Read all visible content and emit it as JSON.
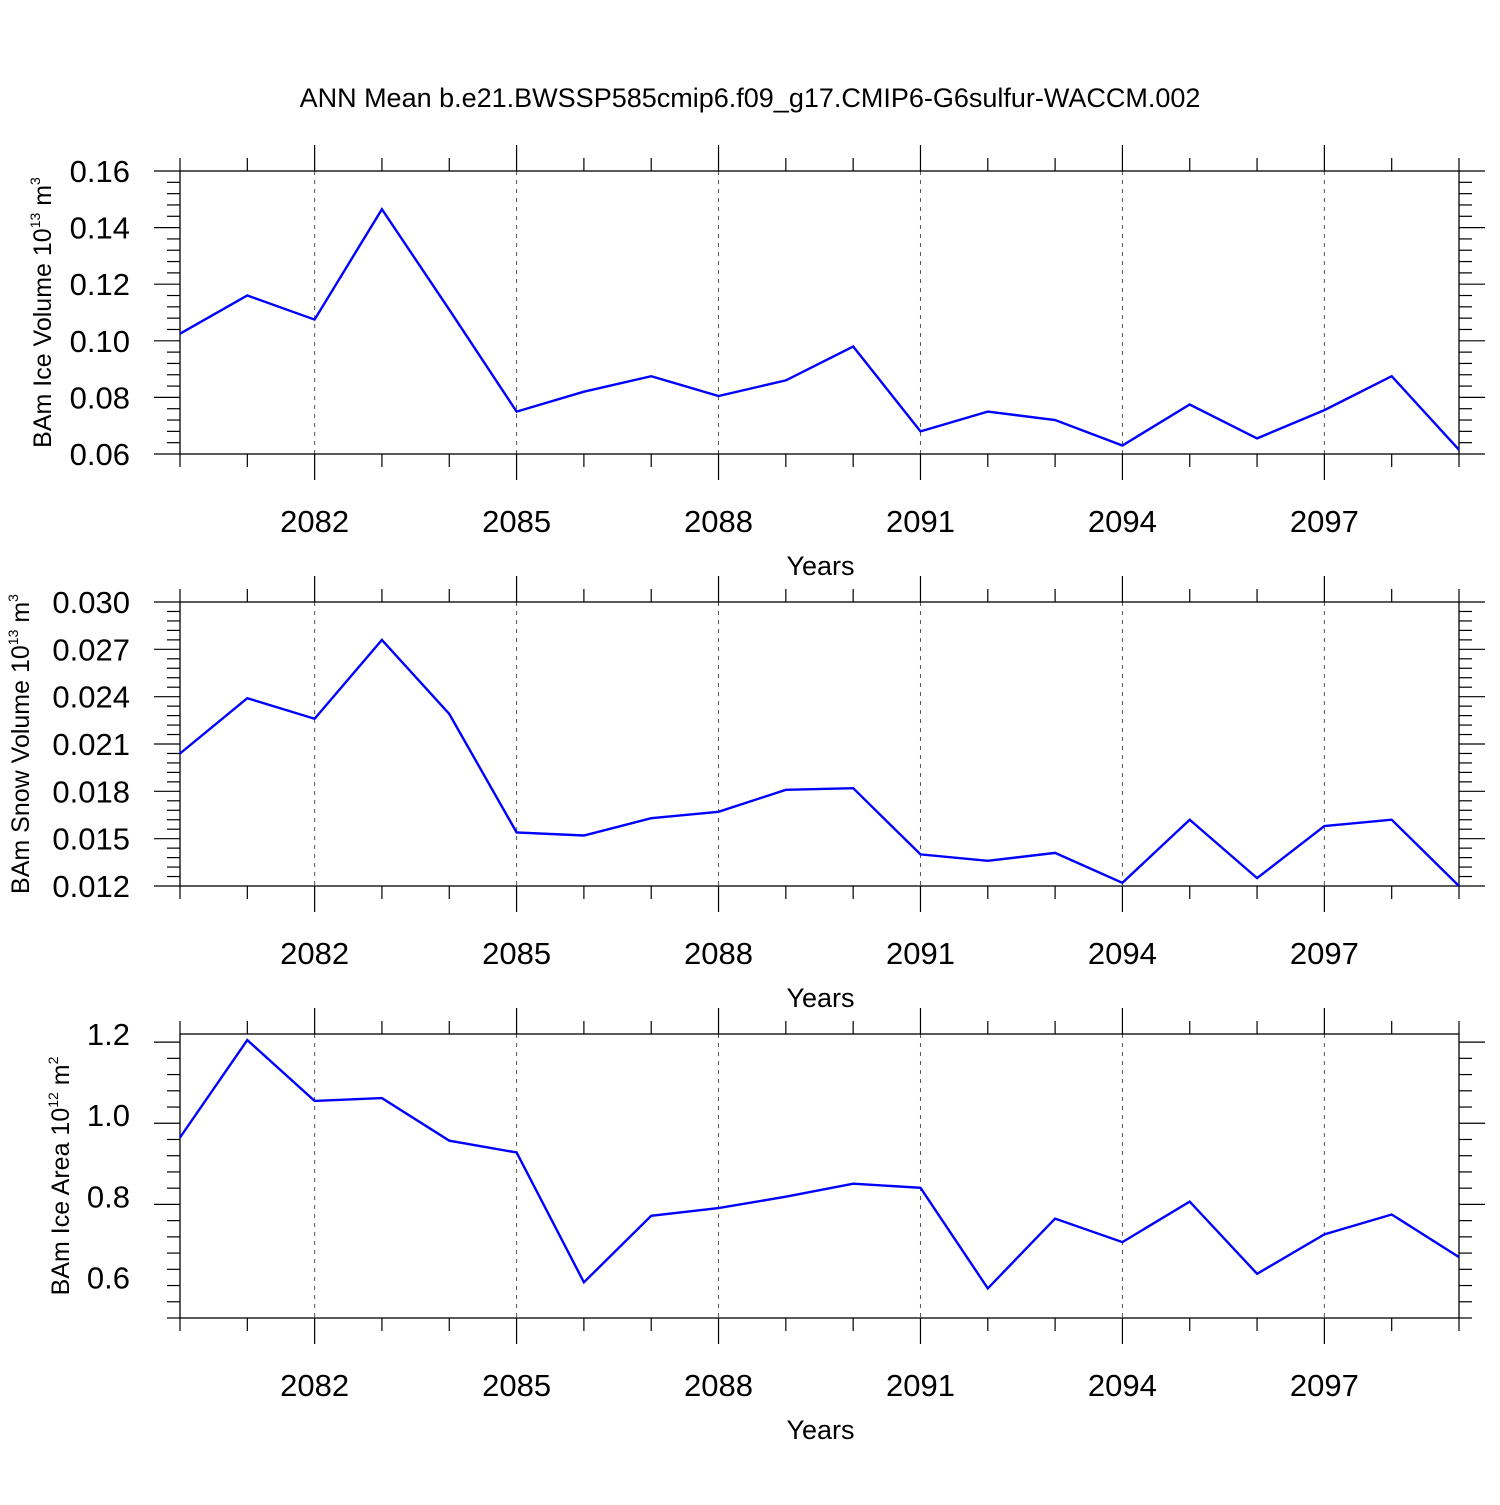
{
  "title": "ANN Mean b.e21.BWSSP585cmip6.f09_g17.CMIP6-G6sulfur-WACCM.002",
  "colors": {
    "line": "#0000ff",
    "axis": "#000000",
    "grid": "#555555"
  },
  "chart_data": [
    {
      "type": "line",
      "ylabel": {
        "text": "BAm Ice Volume 10",
        "sup1": "13",
        "unit": "m",
        "sup2": "3"
      },
      "xlabel": "Years",
      "xlim": [
        2080,
        2099
      ],
      "ylim": [
        0.06,
        0.16
      ],
      "x_ticks": [
        2082,
        2085,
        2088,
        2091,
        2094,
        2097
      ],
      "x_tick_labels": [
        "2082",
        "2085",
        "2088",
        "2091",
        "2094",
        "2097"
      ],
      "y_ticks": [
        0.06,
        0.08,
        0.1,
        0.12,
        0.14,
        0.16
      ],
      "y_tick_labels": [
        "0.06",
        "0.08",
        "0.10",
        "0.12",
        "0.14",
        "0.16"
      ],
      "grid": "vertical dashed at major x ticks",
      "x": [
        2080,
        2081,
        2082,
        2083,
        2084,
        2085,
        2086,
        2087,
        2088,
        2089,
        2090,
        2091,
        2092,
        2093,
        2094,
        2095,
        2096,
        2097,
        2098,
        2099
      ],
      "values": [
        0.1025,
        0.116,
        0.1075,
        0.1465,
        0.111,
        0.075,
        0.082,
        0.0875,
        0.0805,
        0.086,
        0.098,
        0.068,
        0.075,
        0.072,
        0.063,
        0.0775,
        0.0655,
        0.0755,
        0.0875,
        0.0615
      ]
    },
    {
      "type": "line",
      "ylabel": {
        "text": "BAm Snow Volume 10",
        "sup1": "13",
        "unit": "m",
        "sup2": "3"
      },
      "xlabel": "Years",
      "xlim": [
        2080,
        2099
      ],
      "ylim": [
        0.012,
        0.03
      ],
      "x_ticks": [
        2082,
        2085,
        2088,
        2091,
        2094,
        2097
      ],
      "x_tick_labels": [
        "2082",
        "2085",
        "2088",
        "2091",
        "2094",
        "2097"
      ],
      "y_ticks": [
        0.012,
        0.015,
        0.018,
        0.021,
        0.024,
        0.027,
        0.03
      ],
      "y_tick_labels": [
        "0.012",
        "0.015",
        "0.018",
        "0.021",
        "0.024",
        "0.027",
        "0.030"
      ],
      "grid": "vertical dashed at major x ticks",
      "x": [
        2080,
        2081,
        2082,
        2083,
        2084,
        2085,
        2086,
        2087,
        2088,
        2089,
        2090,
        2091,
        2092,
        2093,
        2094,
        2095,
        2096,
        2097,
        2098,
        2099
      ],
      "values": [
        0.0204,
        0.0239,
        0.0226,
        0.0276,
        0.0229,
        0.0154,
        0.0152,
        0.0163,
        0.0167,
        0.0181,
        0.0182,
        0.014,
        0.0136,
        0.0141,
        0.0122,
        0.0162,
        0.0125,
        0.0158,
        0.0162,
        0.012
      ]
    },
    {
      "type": "line",
      "ylabel": {
        "text": "BAm Ice Area 10",
        "sup1": "12",
        "unit": "m",
        "sup2": "2"
      },
      "xlabel": "Years",
      "xlim": [
        2080,
        2099
      ],
      "ylim": [
        0.5,
        1.2
      ],
      "x_ticks": [
        2082,
        2085,
        2088,
        2091,
        2094,
        2097
      ],
      "x_tick_labels": [
        "2082",
        "2085",
        "2088",
        "2091",
        "2094",
        "2097"
      ],
      "y_ticks": [
        0.6,
        0.8,
        1.0,
        1.2
      ],
      "y_tick_labels": [
        "0.6",
        "0.8",
        "1.0",
        "1.2"
      ],
      "grid": "vertical dashed at major x ticks",
      "x": [
        2080,
        2081,
        2082,
        2083,
        2084,
        2085,
        2086,
        2087,
        2088,
        2089,
        2090,
        2091,
        2092,
        2093,
        2094,
        2095,
        2096,
        2097,
        2098,
        2099
      ],
      "values": [
        0.945,
        1.185,
        1.035,
        1.042,
        0.937,
        0.908,
        0.588,
        0.752,
        0.771,
        0.799,
        0.831,
        0.821,
        0.573,
        0.745,
        0.687,
        0.787,
        0.609,
        0.706,
        0.755,
        0.65
      ]
    }
  ]
}
